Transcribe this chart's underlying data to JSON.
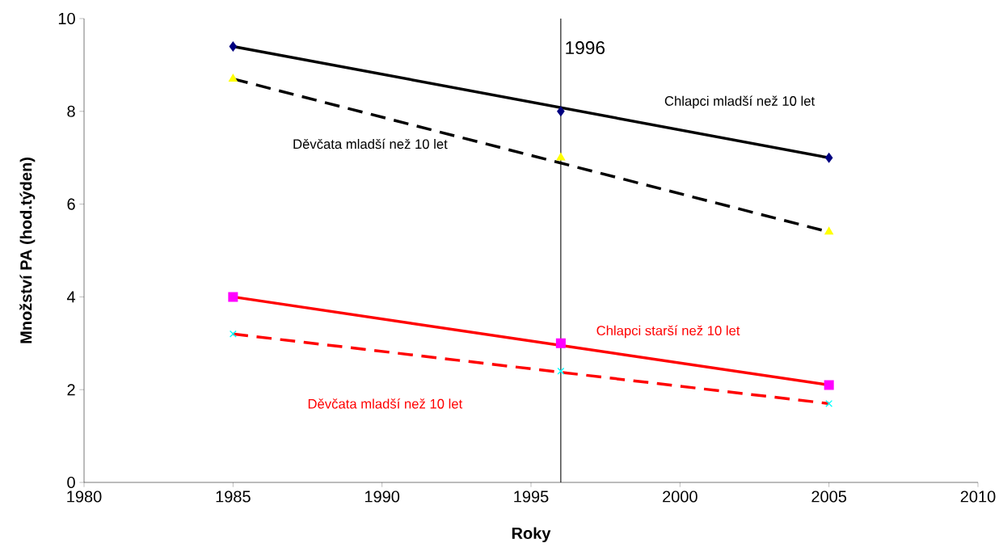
{
  "chart_data": {
    "type": "line",
    "xlabel": "Roky",
    "ylabel": "Množství PA (hod.týden)",
    "xlim": [
      1980,
      2010
    ],
    "xticks": [
      1980,
      1985,
      1990,
      1995,
      2000,
      2005,
      2010
    ],
    "ylim": [
      0,
      10
    ],
    "yticks": [
      0,
      2,
      4,
      6,
      8,
      10
    ],
    "ref_lines": [
      {
        "axis": "x",
        "value": 1996,
        "label": "1996",
        "color": "#000000"
      }
    ],
    "series": [
      {
        "type": "line",
        "name": "Chlapci mladší než 10 let",
        "color": "#000000",
        "x": [
          1985,
          2005
        ],
        "values": [
          9.4,
          7.0
        ],
        "line_style": "solid",
        "marker": "none"
      },
      {
        "type": "line",
        "name": "Děvčata mladší než 10 let",
        "color": "#000000",
        "x": [
          1985,
          2005
        ],
        "values": [
          8.7,
          5.4
        ],
        "line_style": "dashed",
        "marker": "none"
      },
      {
        "type": "line",
        "name": "Chlapci starší než 10 let",
        "color": "#ff0000",
        "x": [
          1985,
          2005
        ],
        "values": [
          4.0,
          2.1
        ],
        "line_style": "solid",
        "marker": "none"
      },
      {
        "type": "line",
        "name": "Děvčata mladší než 10 let",
        "color": "#ff0000",
        "x": [
          1985,
          2005
        ],
        "values": [
          3.2,
          1.7
        ],
        "line_style": "dashed",
        "marker": "none"
      },
      {
        "type": "scatter",
        "color": "#000080",
        "x": [
          1985,
          1996,
          2005
        ],
        "values": [
          9.4,
          8.0,
          7.0
        ],
        "marker": "diamond"
      },
      {
        "type": "scatter",
        "color": "#ffff00",
        "x": [
          1985,
          1996,
          2005
        ],
        "values": [
          8.7,
          7.0,
          5.4
        ],
        "marker": "triangle"
      },
      {
        "type": "scatter",
        "color": "#ff00ff",
        "x": [
          1985,
          1996,
          2005
        ],
        "values": [
          4.0,
          3.0,
          2.1
        ],
        "marker": "square"
      },
      {
        "type": "scatter",
        "color": "#00ffff",
        "x": [
          1985,
          1996,
          2005
        ],
        "values": [
          3.2,
          2.4,
          1.7
        ],
        "marker": "cross"
      }
    ]
  }
}
